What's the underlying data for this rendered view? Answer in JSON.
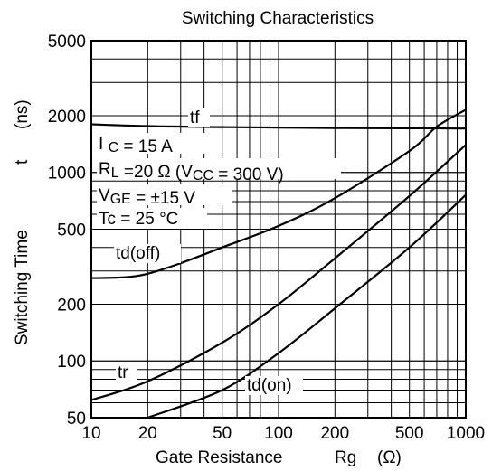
{
  "chart_data": {
    "type": "line",
    "title": "Switching Characteristics",
    "xlabel_text": "Gate Resistance",
    "xlabel_symbol": "Rg",
    "xlabel_unit": "(Ω)",
    "ylabel_text": "Switching Time",
    "ylabel_symbol": "t",
    "ylabel_unit": "(ns)",
    "x_scale": "log",
    "y_scale": "log",
    "xlim": [
      10,
      1000
    ],
    "ylim": [
      50,
      5000
    ],
    "x_ticks": [
      10,
      20,
      50,
      100,
      200,
      500,
      1000
    ],
    "x_tick_labels": [
      "10",
      "20",
      "50",
      "100",
      "200",
      "500",
      "1000"
    ],
    "y_ticks": [
      50,
      100,
      200,
      500,
      1000,
      2000,
      5000
    ],
    "y_tick_labels": [
      "50",
      "100",
      "200",
      "500",
      "1000",
      "2000",
      "5000"
    ],
    "grid": true,
    "conditions": [
      {
        "pre": "I ",
        "sub": "C",
        "post": " = 15 A"
      },
      {
        "pre": "R",
        "sub": "L",
        "post": " =20 Ω (V",
        "sub2": "CC",
        "post2": " = 300 V)"
      },
      {
        "pre": "V",
        "sub": "GE",
        "post": " = ±15 V"
      },
      {
        "pre": "Tc = 25 °C",
        "sub": "",
        "post": ""
      }
    ],
    "series": [
      {
        "name": "tf",
        "x": [
          10,
          20,
          50,
          100,
          200,
          500,
          1000
        ],
        "y": [
          1800,
          1760,
          1740,
          1730,
          1720,
          1715,
          1710
        ]
      },
      {
        "name": "td(off)",
        "x": [
          10,
          15,
          20,
          30,
          50,
          100,
          200,
          500,
          700,
          1000
        ],
        "y": [
          275,
          278,
          290,
          330,
          400,
          520,
          730,
          1300,
          1750,
          2150
        ]
      },
      {
        "name": "tr",
        "x": [
          10,
          20,
          50,
          100,
          200,
          500,
          1000
        ],
        "y": [
          62,
          78,
          125,
          200,
          350,
          750,
          1400
        ]
      },
      {
        "name": "td(on)",
        "x": [
          20,
          50,
          100,
          200,
          500,
          1000
        ],
        "y": [
          50,
          70,
          110,
          190,
          400,
          760
        ]
      }
    ]
  }
}
